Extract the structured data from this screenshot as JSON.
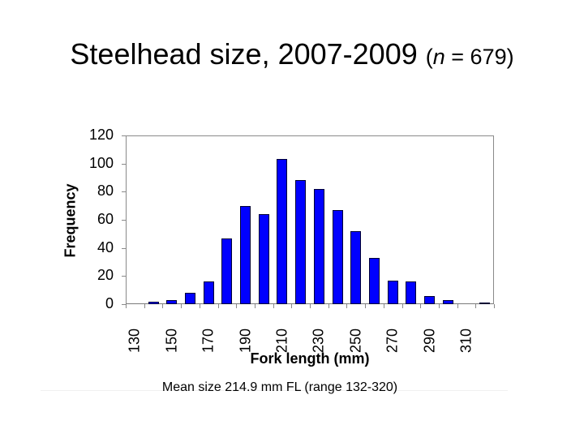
{
  "slide": {
    "title_main": "Steelhead size, 2007-2009",
    "title_n_open": "(",
    "title_n_var": "n",
    "title_n_rest": " = 679)",
    "caption": "Mean size 214.9 mm FL (range 132-320)"
  },
  "chart_data": {
    "type": "bar",
    "title": "Steelhead size, 2007-2009 (n = 679)",
    "xlabel": "Fork length (mm)",
    "ylabel": "Frequency",
    "ylim": [
      0,
      120
    ],
    "yticks": [
      "0",
      "20",
      "40",
      "60",
      "80",
      "100",
      "120"
    ],
    "xtick_labels": [
      "130",
      "150",
      "170",
      "190",
      "210",
      "230",
      "250",
      "270",
      "290",
      "310"
    ],
    "categories": [
      130,
      140,
      150,
      160,
      170,
      180,
      190,
      200,
      210,
      220,
      230,
      240,
      250,
      260,
      270,
      280,
      290,
      300,
      310,
      320
    ],
    "values": [
      0,
      2,
      3,
      8,
      16,
      47,
      70,
      64,
      103,
      88,
      82,
      67,
      52,
      33,
      17,
      16,
      6,
      3,
      0,
      1
    ],
    "bar_color": "#0000ff",
    "grid": false,
    "legend": null,
    "annotation": "Mean size 214.9 mm FL (range 132-320)"
  }
}
